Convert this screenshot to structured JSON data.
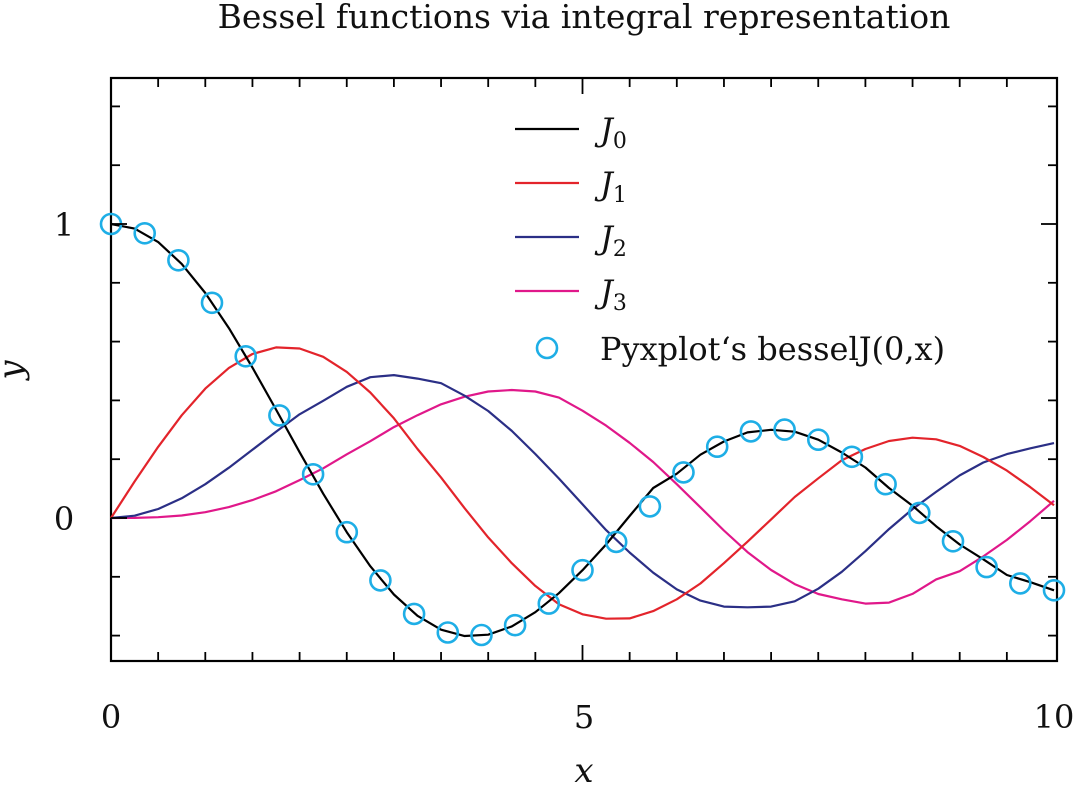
{
  "chart_data": {
    "type": "line",
    "title": "Bessel functions via integral representation",
    "xlabel": "x",
    "ylabel": "y",
    "xlim": [
      0,
      10
    ],
    "ylim": [
      -0.49,
      1.5
    ],
    "x_ticks": [
      0,
      5,
      10
    ],
    "x_tick_labels": [
      "0",
      "5",
      "10"
    ],
    "y_ticks": [
      0,
      1
    ],
    "y_tick_labels": [
      "0",
      "1"
    ],
    "grid": false,
    "legend_position": "top-right",
    "series": [
      {
        "name": "J0",
        "label_main": "J",
        "label_sub": "0",
        "color": "#000000",
        "style": "line",
        "x": [
          0,
          0.25,
          0.5,
          0.75,
          1,
          1.25,
          1.5,
          1.75,
          2,
          2.25,
          2.5,
          2.75,
          3,
          3.25,
          3.5,
          3.75,
          4,
          4.25,
          4.5,
          4.75,
          5,
          5.25,
          5.5,
          5.75,
          6,
          6.25,
          6.5,
          6.75,
          7,
          7.25,
          7.5,
          7.75,
          8,
          8.25,
          8.5,
          8.75,
          9,
          9.25,
          9.5,
          9.75,
          10
        ],
        "y": [
          1,
          0.9844,
          0.9385,
          0.8642,
          0.7652,
          0.6459,
          0.5118,
          0.369,
          0.2239,
          0.0827,
          -0.0484,
          -0.1641,
          -0.2601,
          -0.3327,
          -0.3801,
          -0.4014,
          -0.3971,
          -0.3688,
          -0.3205,
          -0.2559,
          -0.1776,
          -0.0902,
          0.0069,
          0.1019,
          0.1506,
          0.2152,
          0.2601,
          0.2913,
          0.3001,
          0.2934,
          0.2663,
          0.2228,
          0.1717,
          0.1019,
          0.0419,
          -0.0278,
          -0.0903,
          -0.1405,
          -0.1939,
          -0.2183,
          -0.2459
        ]
      },
      {
        "name": "J1",
        "label_main": "J",
        "label_sub": "1",
        "color": "#e3242b",
        "style": "line",
        "x": [
          0,
          0.25,
          0.5,
          0.75,
          1,
          1.25,
          1.5,
          1.75,
          2,
          2.25,
          2.5,
          2.75,
          3,
          3.25,
          3.5,
          3.75,
          4,
          4.25,
          4.5,
          4.75,
          5,
          5.25,
          5.5,
          5.75,
          6,
          6.25,
          6.5,
          6.75,
          7,
          7.25,
          7.5,
          7.75,
          8,
          8.25,
          8.5,
          8.75,
          9,
          9.25,
          9.5,
          9.75,
          10
        ],
        "y": [
          0,
          0.124,
          0.2423,
          0.3492,
          0.4401,
          0.5106,
          0.5579,
          0.5802,
          0.5767,
          0.5484,
          0.4971,
          0.4268,
          0.3391,
          0.2346,
          0.1374,
          0.0333,
          -0.066,
          -0.1538,
          -0.2311,
          -0.2932,
          -0.3276,
          -0.3424,
          -0.3414,
          -0.3168,
          -0.2767,
          -0.2227,
          -0.1538,
          -0.0807,
          -0.0047,
          0.0713,
          0.1352,
          0.1964,
          0.2346,
          0.262,
          0.2731,
          0.2677,
          0.2453,
          0.2075,
          0.1613,
          0.1046,
          0.0435
        ]
      },
      {
        "name": "J2",
        "label_main": "J",
        "label_sub": "2",
        "color": "#2b2f86",
        "style": "line",
        "x": [
          0,
          0.25,
          0.5,
          0.75,
          1,
          1.25,
          1.5,
          1.75,
          2,
          2.25,
          2.5,
          2.75,
          3,
          3.25,
          3.5,
          3.75,
          4,
          4.25,
          4.5,
          4.75,
          5,
          5.25,
          5.5,
          5.75,
          6,
          6.25,
          6.5,
          6.75,
          7,
          7.25,
          7.5,
          7.75,
          8,
          8.25,
          8.5,
          8.75,
          9,
          9.25,
          9.5,
          9.75,
          10
        ],
        "y": [
          0,
          0.0078,
          0.0306,
          0.0671,
          0.1149,
          0.1711,
          0.2321,
          0.2935,
          0.3528,
          0.3985,
          0.4461,
          0.4788,
          0.4861,
          0.4743,
          0.4586,
          0.4161,
          0.3641,
          0.2964,
          0.2178,
          0.1342,
          0.0466,
          -0.0413,
          -0.1173,
          -0.1862,
          -0.2429,
          -0.2808,
          -0.3012,
          -0.3036,
          -0.3014,
          -0.2833,
          -0.2404,
          -0.183,
          -0.113,
          -0.0376,
          0.0303,
          0.0887,
          0.1448,
          0.1889,
          0.2175,
          0.2372,
          0.2546
        ]
      },
      {
        "name": "J3",
        "label_main": "J",
        "label_sub": "3",
        "color": "#e0188a",
        "style": "line",
        "x": [
          0,
          0.25,
          0.5,
          0.75,
          1,
          1.25,
          1.5,
          1.75,
          2,
          2.25,
          2.5,
          2.75,
          3,
          3.25,
          3.5,
          3.75,
          4,
          4.25,
          4.5,
          4.75,
          5,
          5.25,
          5.5,
          5.75,
          6,
          6.25,
          6.5,
          6.75,
          7,
          7.25,
          7.5,
          7.75,
          8,
          8.25,
          8.5,
          8.75,
          9,
          9.25,
          9.5,
          9.75,
          10
        ],
        "y": [
          0,
          0.0003,
          0.0026,
          0.0085,
          0.0196,
          0.0372,
          0.061,
          0.0907,
          0.1289,
          0.1689,
          0.2166,
          0.2612,
          0.3091,
          0.3497,
          0.3868,
          0.4127,
          0.4302,
          0.4354,
          0.4302,
          0.4096,
          0.3648,
          0.3143,
          0.2559,
          0.1905,
          0.1148,
          0.0365,
          -0.0424,
          -0.1161,
          -0.1768,
          -0.2249,
          -0.2586,
          -0.2766,
          -0.2911,
          -0.2876,
          -0.2582,
          -0.2088,
          -0.1809,
          -0.1306,
          -0.0745,
          -0.0106,
          0.0584
        ]
      },
      {
        "name": "Pyxplot‘s besselJ(0,x)",
        "color": "#1eaee6",
        "style": "marker-circle",
        "x": [
          0,
          0.3571,
          0.7143,
          1.0714,
          1.4286,
          1.7857,
          2.1429,
          2.5,
          2.8571,
          3.2143,
          3.5714,
          3.9286,
          4.2857,
          4.6429,
          5,
          5.3571,
          5.7143,
          6.0714,
          6.4286,
          6.7857,
          7.1429,
          7.5,
          7.8571,
          8.2143,
          8.5714,
          8.9286,
          9.2857,
          9.6429,
          10
        ],
        "y": [
          1,
          0.9683,
          0.8764,
          0.7321,
          0.5499,
          0.3491,
          0.1485,
          -0.0484,
          -0.2122,
          -0.3262,
          -0.3894,
          -0.3978,
          -0.3647,
          -0.2911,
          -0.1776,
          -0.0814,
          0.0393,
          0.1552,
          0.2424,
          0.2944,
          0.3007,
          0.2663,
          0.2083,
          0.1148,
          0.0175,
          -0.0794,
          -0.1669,
          -0.2226,
          -0.2459
        ]
      }
    ]
  }
}
